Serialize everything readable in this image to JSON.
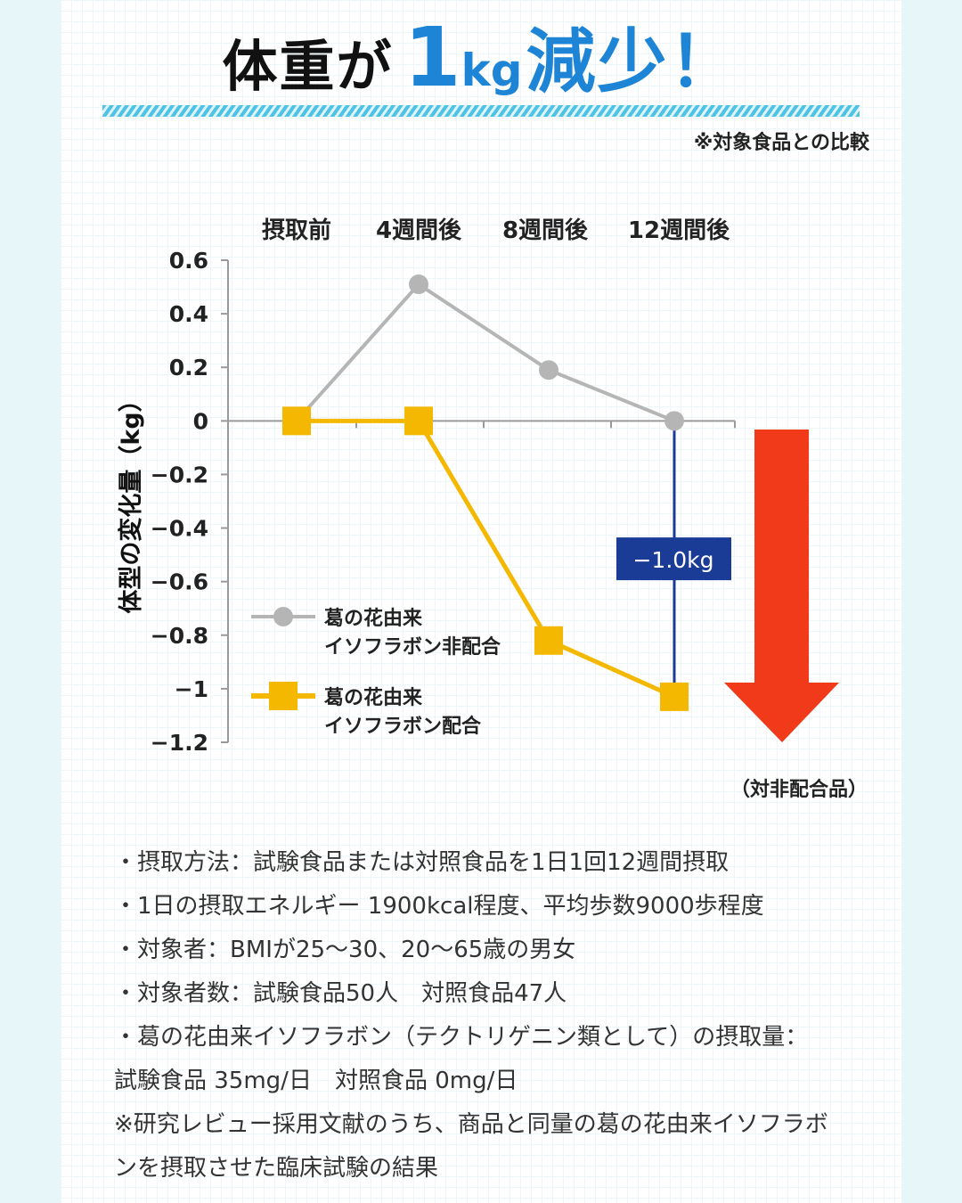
{
  "headline": {
    "part1": "体重が",
    "number": "1",
    "unit": "kg",
    "part2": "減少！"
  },
  "compare_note": "※対象食品との比較",
  "chart_data": {
    "type": "line",
    "categories": [
      "摂取前",
      "4週間後",
      "8週間後",
      "12週間後"
    ],
    "ylabel": "体型の変化量（kg）",
    "ylim": [
      -1.2,
      0.6
    ],
    "yticks": [
      0.6,
      0.4,
      0.2,
      0,
      -0.2,
      -0.4,
      -0.6,
      -0.8,
      -1,
      -1.2
    ],
    "ytick_labels": [
      "0.6",
      "0.4",
      "0.2",
      "0",
      "−0.2",
      "−0.4",
      "−0.6",
      "−0.8",
      "−1",
      "−1.2"
    ],
    "series": [
      {
        "name": "葛の花由来イソフラボン非配合",
        "legend_lines": [
          "葛の花由来",
          "イソフラボン非配合"
        ],
        "marker": "circle",
        "color": "#b5b5b5",
        "values": [
          0,
          0.51,
          0.19,
          0
        ]
      },
      {
        "name": "葛の花由来イソフラボン配合",
        "legend_lines": [
          "葛の花由来",
          "イソフラボン配合"
        ],
        "marker": "square",
        "color": "#f5b800",
        "values": [
          0,
          0,
          -0.82,
          -1.03
        ]
      }
    ],
    "annotation": {
      "text": "−1.0kg",
      "color": "#1b3c96"
    },
    "arrow_color": "#f03a1a",
    "legend": "bottom-left",
    "grid": false
  },
  "vs_label": "（対非配合品）",
  "notes": [
    "・摂取方法：試験食品または対照食品を1日1回12週間摂取",
    "・1日の摂取エネルギー 1900kcal程度、平均歩数9000歩程度",
    "・対象者：BMIが25～30、20～65歳の男女",
    "・対象者数：試験食品50人　対照食品47人",
    "・葛の花由来イソフラボン（テクトリゲニン類として）の摂取量：",
    "試験食品 35mg/日　対照食品 0mg/日",
    "※研究レビュー採用文献のうち、商品と同量の葛の花由来イソフラボ",
    "ンを摂取させた臨床試験の結果"
  ],
  "colors": {
    "headline_blue": "#1d84d6",
    "stripe": "#4ec3e6"
  }
}
